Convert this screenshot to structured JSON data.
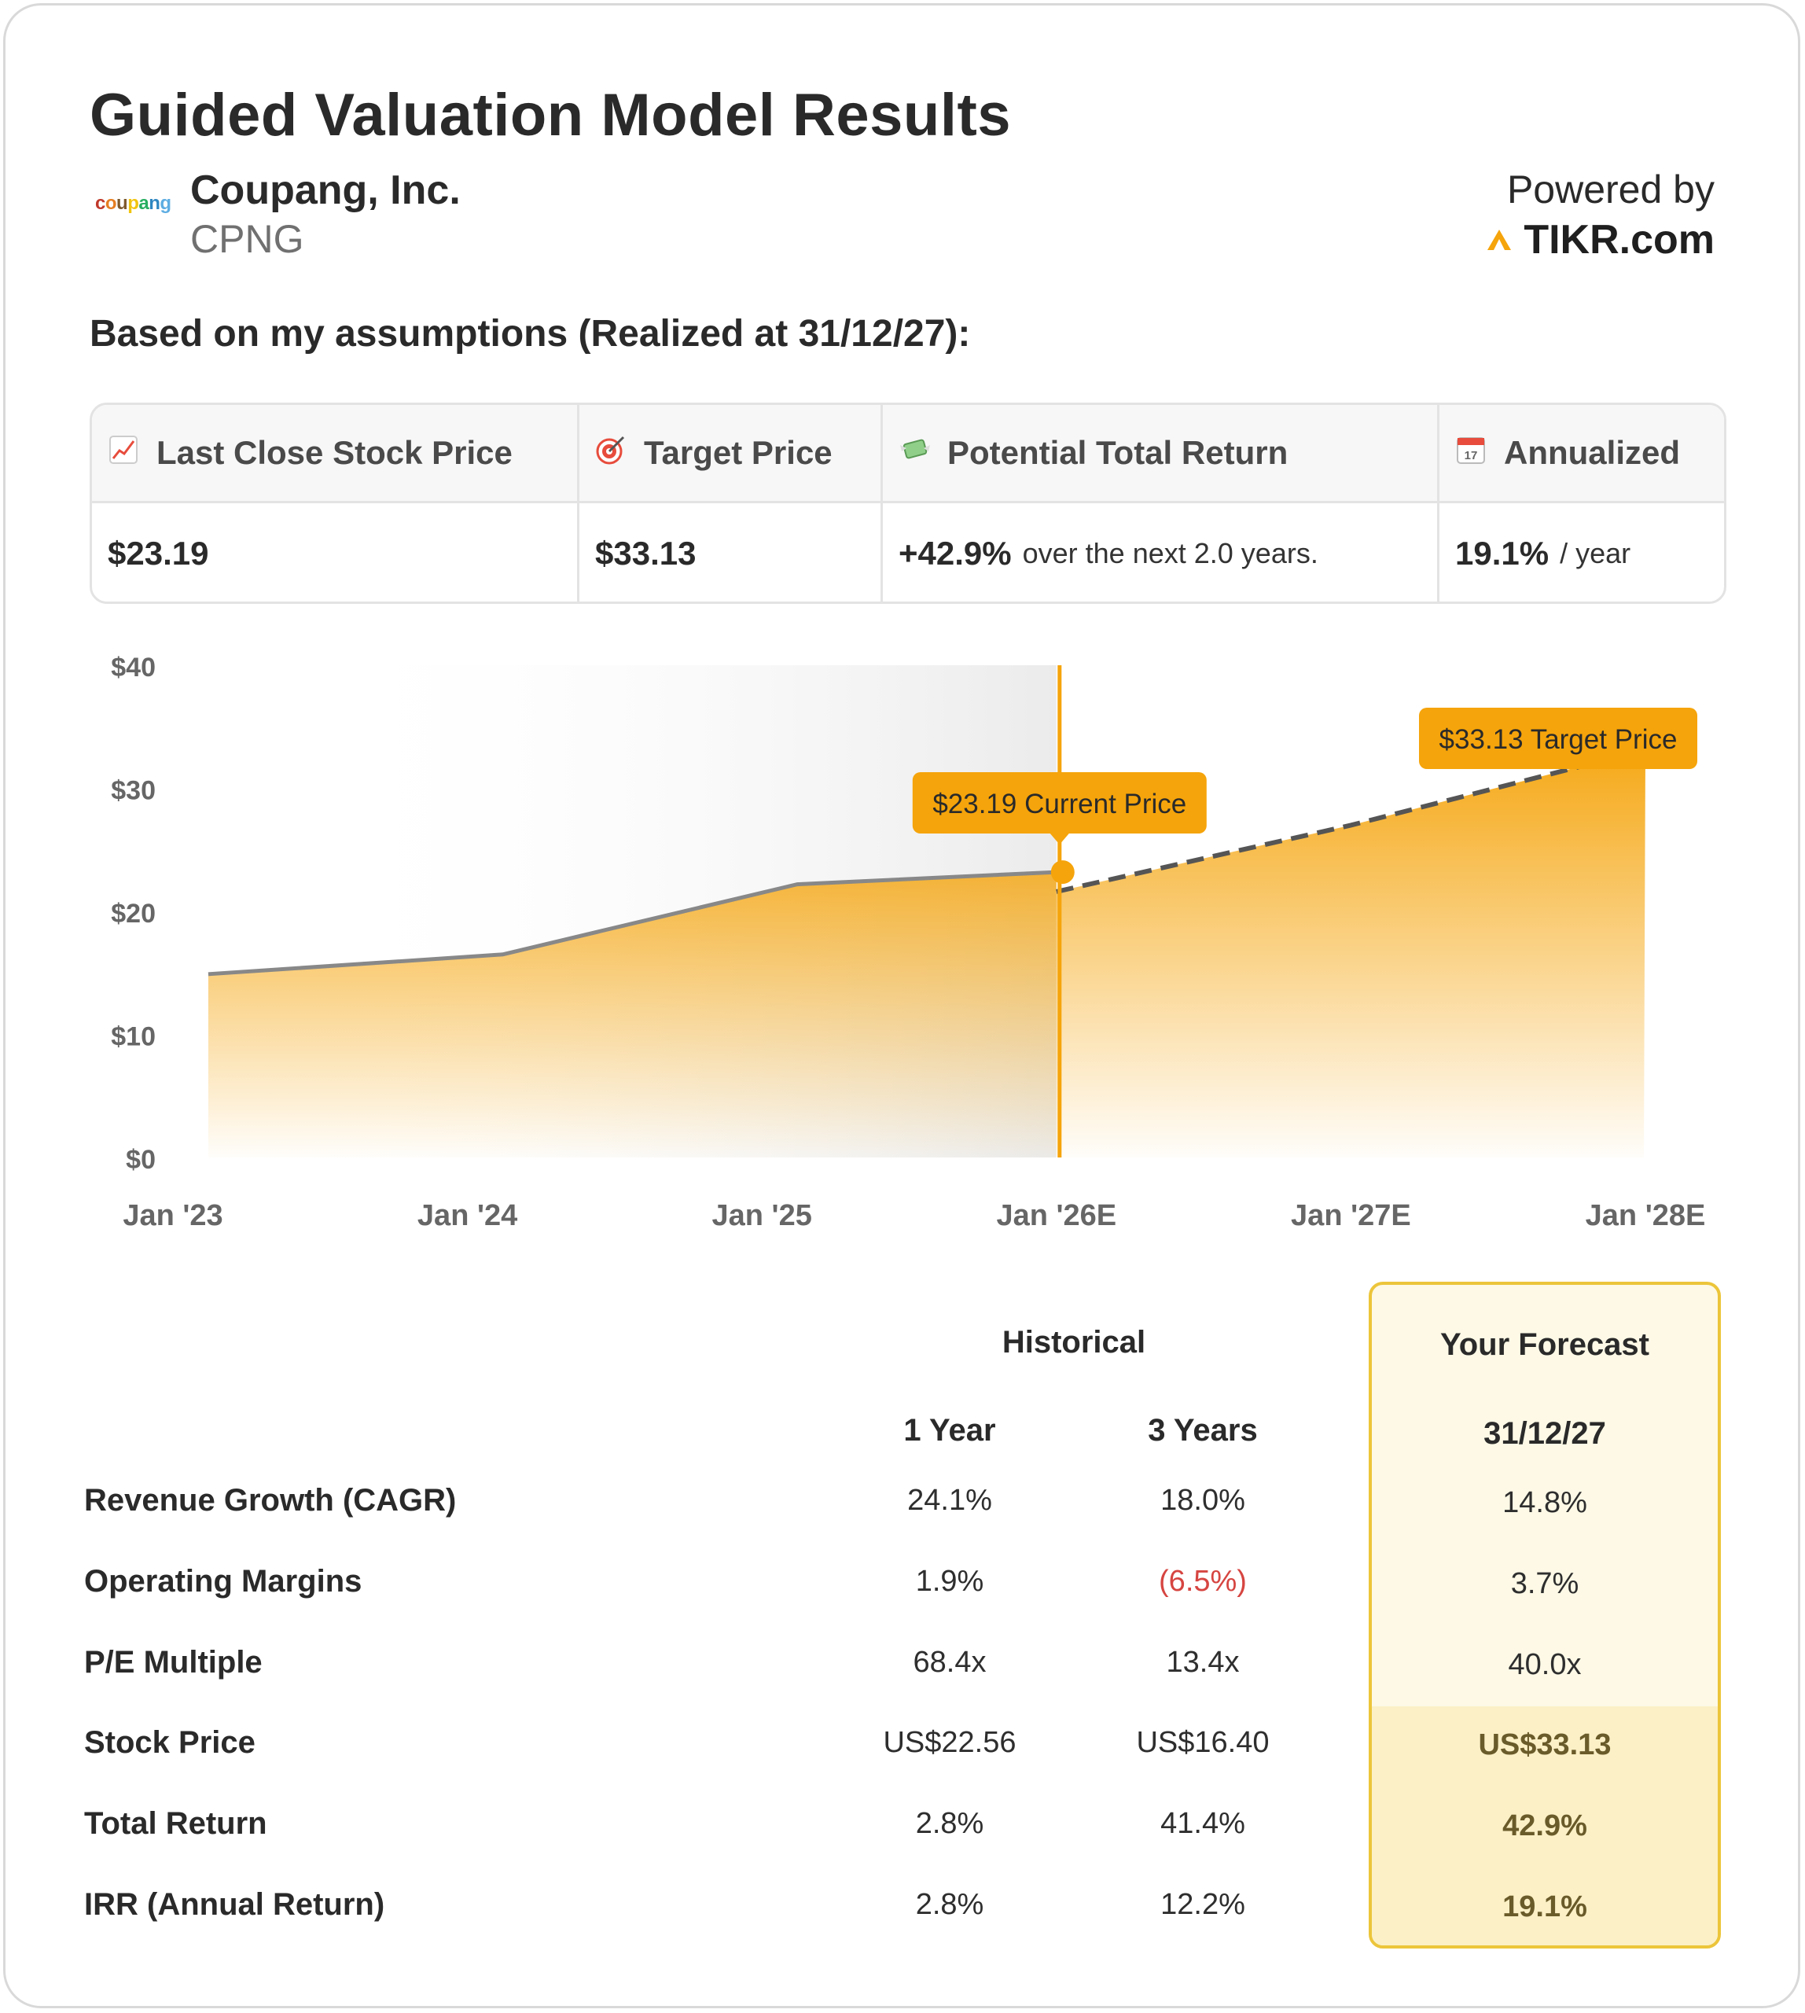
{
  "header": {
    "title": "Guided Valuation Model Results",
    "logo_text": "coupang",
    "company_name": "Coupang, Inc.",
    "ticker": "CPNG",
    "powered_by": "Powered by",
    "brand": "TIKR.com"
  },
  "assumptions_label": "Based on my assumptions (Realized at 31/12/27):",
  "metrics": {
    "last_close": {
      "label": "Last Close Stock Price",
      "icon": "chart-increasing-icon",
      "value": "$23.19"
    },
    "target": {
      "label": "Target Price",
      "icon": "target-icon",
      "value": "$33.13"
    },
    "total_return": {
      "label": "Potential Total Return",
      "icon": "money-wings-icon",
      "value": "+42.9%",
      "suffix": "over the next 2.0 years."
    },
    "annualized": {
      "label": "Annualized",
      "icon": "calendar-icon",
      "value": "19.1%",
      "suffix": "/ year"
    }
  },
  "chart_data": {
    "type": "area",
    "x": [
      "Jan '23",
      "Jan '24",
      "Jan '25",
      "Jan '26E",
      "Jan '27E",
      "Jan '28E"
    ],
    "y_ticks": [
      "$0",
      "$10",
      "$20",
      "$30",
      "$40"
    ],
    "ylim": [
      0,
      40
    ],
    "historical": [
      {
        "x": 2023.12,
        "y": 14.9
      },
      {
        "x": 2024.12,
        "y": 16.5
      },
      {
        "x": 2025.12,
        "y": 22.2
      },
      {
        "x": 2026.0,
        "y": 23.19
      }
    ],
    "forecast": [
      {
        "x": 2026.0,
        "y": 21.6
      },
      {
        "x": 2027.0,
        "y": 27.0
      },
      {
        "x": 2028.0,
        "y": 33.13
      }
    ],
    "current_label": "$23.19 Current Price",
    "target_label": "$33.13 Target Price",
    "accent": "#f5a40b",
    "line_color": "#888888"
  },
  "table": {
    "historical_label": "Historical",
    "forecast_label": "Your Forecast",
    "col_1y": "1 Year",
    "col_3y": "3 Years",
    "col_forecast": "31/12/27",
    "rows": [
      {
        "label": "Revenue Growth (CAGR)",
        "y1": "24.1%",
        "y3": "18.0%",
        "f": "14.8%"
      },
      {
        "label": "Operating Margins",
        "y1": "1.9%",
        "y3": "(6.5%)",
        "f": "3.7%"
      },
      {
        "label": "P/E Multiple",
        "y1": "68.4x",
        "y3": "13.4x",
        "f": "40.0x"
      },
      {
        "label": "Stock Price",
        "y1": "US$22.56",
        "y3": "US$16.40",
        "f": "US$33.13"
      },
      {
        "label": "Total Return",
        "y1": "2.8%",
        "y3": "41.4%",
        "f": "42.9%"
      },
      {
        "label": "IRR (Annual Return)",
        "y1": "2.8%",
        "y3": "12.2%",
        "f": "19.1%"
      }
    ]
  }
}
